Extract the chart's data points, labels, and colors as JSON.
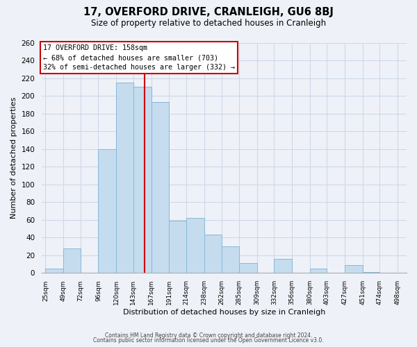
{
  "title": "17, OVERFORD DRIVE, CRANLEIGH, GU6 8BJ",
  "subtitle": "Size of property relative to detached houses in Cranleigh",
  "xlabel": "Distribution of detached houses by size in Cranleigh",
  "ylabel": "Number of detached properties",
  "bar_left_edges": [
    25,
    49,
    72,
    96,
    120,
    143,
    167,
    191,
    214,
    238,
    262,
    285,
    309,
    332,
    356,
    380,
    403,
    427,
    451,
    474
  ],
  "bar_heights": [
    5,
    28,
    0,
    140,
    215,
    210,
    193,
    59,
    62,
    43,
    30,
    11,
    0,
    16,
    0,
    5,
    0,
    9,
    1,
    0
  ],
  "bar_widths": [
    24,
    23,
    24,
    24,
    23,
    24,
    24,
    23,
    24,
    24,
    23,
    24,
    23,
    24,
    24,
    23,
    24,
    24,
    23,
    24
  ],
  "bar_color": "#c5dcee",
  "bar_edge_color": "#88b8d8",
  "x_tick_labels": [
    "25sqm",
    "49sqm",
    "72sqm",
    "96sqm",
    "120sqm",
    "143sqm",
    "167sqm",
    "191sqm",
    "214sqm",
    "238sqm",
    "262sqm",
    "285sqm",
    "309sqm",
    "332sqm",
    "356sqm",
    "380sqm",
    "403sqm",
    "427sqm",
    "451sqm",
    "474sqm",
    "498sqm"
  ],
  "x_tick_positions": [
    25,
    49,
    72,
    96,
    120,
    143,
    167,
    191,
    214,
    238,
    262,
    285,
    309,
    332,
    356,
    380,
    403,
    427,
    451,
    474,
    498
  ],
  "ylim": [
    0,
    260
  ],
  "xlim": [
    20,
    510
  ],
  "vline_x": 158,
  "vline_color": "#cc0000",
  "annotation_title": "17 OVERFORD DRIVE: 158sqm",
  "annotation_line1": "← 68% of detached houses are smaller (703)",
  "annotation_line2": "32% of semi-detached houses are larger (332) →",
  "footer_line1": "Contains HM Land Registry data © Crown copyright and database right 2024.",
  "footer_line2": "Contains public sector information licensed under the Open Government Licence v3.0.",
  "grid_color": "#cdd8e8",
  "background_color": "#eef2f8",
  "yticks": [
    0,
    20,
    40,
    60,
    80,
    100,
    120,
    140,
    160,
    180,
    200,
    220,
    240,
    260
  ]
}
